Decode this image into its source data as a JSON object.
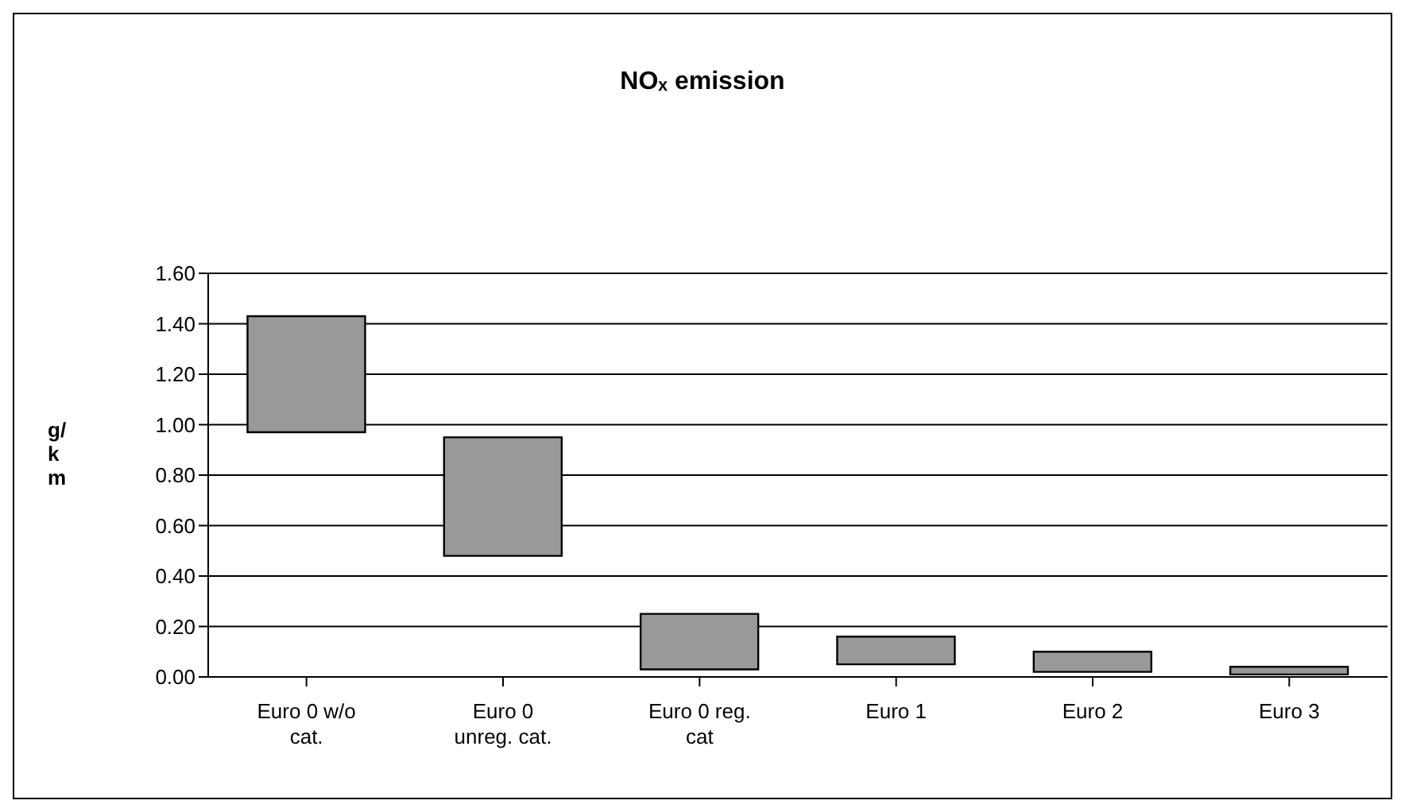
{
  "chart_data": {
    "type": "bar",
    "title": "NOₓ emission",
    "ylabel": "g/km",
    "categories": [
      "Euro 0 w/o cat.",
      "Euro 0 unreg. cat.",
      "Euro 0 reg. cat",
      "Euro 1",
      "Euro 2",
      "Euro 3"
    ],
    "base": [
      0.97,
      0.48,
      0.03,
      0.05,
      0.02,
      0.01
    ],
    "values": [
      0.46,
      0.47,
      0.22,
      0.11,
      0.08,
      0.03
    ],
    "color": "#999999",
    "ylim": [
      0,
      1.6
    ],
    "yticks": [
      {
        "value": 0,
        "label": "0.00"
      },
      {
        "value": 0.2,
        "label": "0.20"
      },
      {
        "value": 0.4,
        "label": "0.40"
      },
      {
        "value": 0.6,
        "label": "0.60"
      },
      {
        "value": 0.8,
        "label": "0.80"
      },
      {
        "value": 1.0,
        "label": "1.00"
      },
      {
        "value": 1.2,
        "label": "1.20"
      },
      {
        "value": 1.4,
        "label": "1.40"
      },
      {
        "value": 1.6,
        "label": "1.60"
      }
    ],
    "grid": "y",
    "legend": false
  }
}
